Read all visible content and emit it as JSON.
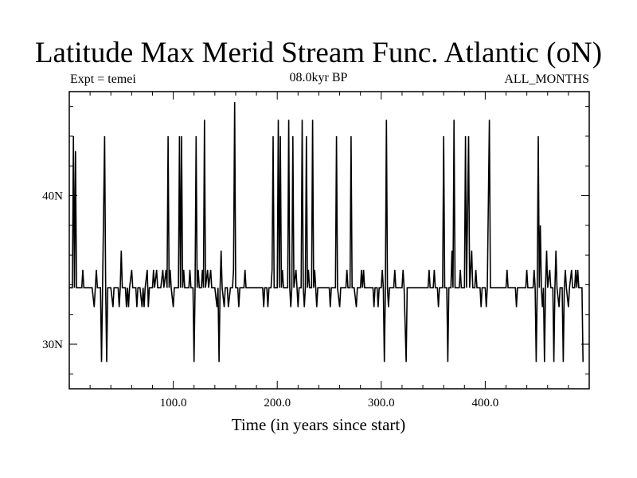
{
  "title": "Latitude Max Merid Stream Func. Atlantic (oN)",
  "subtitle_left": "Expt = temei",
  "subtitle_center": "08.0kyr BP",
  "subtitle_right": "ALL_MONTHS",
  "chart_data": {
    "type": "line",
    "title": "Latitude Max Merid Stream Func. Atlantic (oN)",
    "xlabel": "Time (in years since start)",
    "ylabel": "",
    "xlim": [
      0,
      500
    ],
    "ylim": [
      27,
      47
    ],
    "x_ticks": [
      100,
      200,
      300,
      400
    ],
    "x_tick_labels": [
      "100.0",
      "200.0",
      "300.0",
      "400.0"
    ],
    "y_ticks": [
      30,
      40
    ],
    "y_tick_labels": [
      "30N",
      "40N"
    ],
    "grid": false,
    "series": [
      {
        "color": "#000000",
        "points": [
          [
            0,
            33.8
          ],
          [
            3,
            33.8
          ],
          [
            4,
            44
          ],
          [
            5,
            33.8
          ],
          [
            6,
            43
          ],
          [
            7,
            33.8
          ],
          [
            12,
            33.8
          ],
          [
            13,
            35
          ],
          [
            14,
            33.8
          ],
          [
            22,
            33.8
          ],
          [
            24,
            32.5
          ],
          [
            25,
            33.8
          ],
          [
            26,
            35
          ],
          [
            27,
            33.8
          ],
          [
            30,
            33.8
          ],
          [
            31,
            28.8
          ],
          [
            32,
            33.8
          ],
          [
            34,
            44
          ],
          [
            35,
            33.8
          ],
          [
            36,
            28.8
          ],
          [
            37,
            33.8
          ],
          [
            40,
            33.8
          ],
          [
            42,
            32.5
          ],
          [
            43,
            33.8
          ],
          [
            47,
            33.8
          ],
          [
            48,
            32.5
          ],
          [
            49,
            33.8
          ],
          [
            50,
            36.3
          ],
          [
            51,
            33.8
          ],
          [
            54,
            33.8
          ],
          [
            55,
            32.5
          ],
          [
            56,
            33.8
          ],
          [
            57,
            32.5
          ],
          [
            58,
            33.8
          ],
          [
            60,
            35
          ],
          [
            61,
            33.8
          ],
          [
            64,
            33.8
          ],
          [
            65,
            32.5
          ],
          [
            66,
            33.8
          ],
          [
            68,
            33.8
          ],
          [
            70,
            32.5
          ],
          [
            71,
            33.8
          ],
          [
            72,
            32.5
          ],
          [
            73,
            33.8
          ],
          [
            75,
            35
          ],
          [
            76,
            32.5
          ],
          [
            77,
            33.8
          ],
          [
            80,
            33.8
          ],
          [
            81,
            35
          ],
          [
            82,
            33.8
          ],
          [
            84,
            35
          ],
          [
            85,
            33.8
          ],
          [
            88,
            33.8
          ],
          [
            90,
            35
          ],
          [
            91,
            33.8
          ],
          [
            93,
            35
          ],
          [
            94,
            33.8
          ],
          [
            95,
            44
          ],
          [
            96,
            33.8
          ],
          [
            97,
            35
          ],
          [
            98,
            33.8
          ],
          [
            100,
            32.5
          ],
          [
            101,
            33.8
          ],
          [
            105,
            33.8
          ],
          [
            106,
            44
          ],
          [
            107,
            33.8
          ],
          [
            108,
            44
          ],
          [
            109,
            33.8
          ],
          [
            110,
            35
          ],
          [
            111,
            33.8
          ],
          [
            115,
            33.8
          ],
          [
            116,
            35
          ],
          [
            117,
            33.8
          ],
          [
            119,
            33.8
          ],
          [
            120,
            28.8
          ],
          [
            121,
            33.8
          ],
          [
            122,
            44
          ],
          [
            123,
            33.8
          ],
          [
            124,
            35
          ],
          [
            125,
            33.8
          ],
          [
            127,
            33.8
          ],
          [
            128,
            35
          ],
          [
            129,
            33.8
          ],
          [
            130,
            45.1
          ],
          [
            131,
            33.8
          ],
          [
            133,
            35
          ],
          [
            134,
            33.8
          ],
          [
            136,
            35
          ],
          [
            137,
            33.8
          ],
          [
            140,
            33.8
          ],
          [
            142,
            32.5
          ],
          [
            143,
            33.8
          ],
          [
            144,
            28.8
          ],
          [
            145,
            33.8
          ],
          [
            146,
            36.3
          ],
          [
            147,
            33.8
          ],
          [
            149,
            32.5
          ],
          [
            150,
            33.8
          ],
          [
            152,
            33.8
          ],
          [
            153,
            32.5
          ],
          [
            155,
            33.8
          ],
          [
            157,
            33.8
          ],
          [
            158,
            35
          ],
          [
            159,
            46.3
          ],
          [
            160,
            33.8
          ],
          [
            162,
            33.8
          ],
          [
            163,
            32.5
          ],
          [
            164,
            33.8
          ],
          [
            168,
            33.8
          ],
          [
            169,
            35
          ],
          [
            170,
            33.8
          ],
          [
            186,
            33.8
          ],
          [
            187,
            32.5
          ],
          [
            188,
            33.8
          ],
          [
            190,
            33.8
          ],
          [
            191,
            32.5
          ],
          [
            192,
            33.8
          ],
          [
            194,
            33.8
          ],
          [
            195,
            35
          ],
          [
            196,
            44
          ],
          [
            197,
            33.8
          ],
          [
            200,
            33.8
          ],
          [
            201,
            45.1
          ],
          [
            202,
            33.8
          ],
          [
            203,
            44
          ],
          [
            204,
            33.8
          ],
          [
            205,
            35
          ],
          [
            206,
            33.8
          ],
          [
            210,
            33.8
          ],
          [
            211,
            45.1
          ],
          [
            212,
            33.8
          ],
          [
            213,
            32.5
          ],
          [
            214,
            33.8
          ],
          [
            215,
            44
          ],
          [
            216,
            33.8
          ],
          [
            218,
            35
          ],
          [
            219,
            33.8
          ],
          [
            220,
            32.5
          ],
          [
            221,
            33.8
          ],
          [
            223,
            33.8
          ],
          [
            224,
            45.1
          ],
          [
            225,
            33.8
          ],
          [
            226,
            32.5
          ],
          [
            227,
            33.8
          ],
          [
            228,
            44
          ],
          [
            229,
            33.8
          ],
          [
            230,
            35
          ],
          [
            231,
            33.8
          ],
          [
            233,
            33.8
          ],
          [
            234,
            45.1
          ],
          [
            235,
            33.8
          ],
          [
            236,
            35
          ],
          [
            237,
            33.8
          ],
          [
            238,
            32.5
          ],
          [
            239,
            33.8
          ],
          [
            250,
            33.8
          ],
          [
            251,
            32.5
          ],
          [
            252,
            33.8
          ],
          [
            256,
            33.8
          ],
          [
            257,
            44
          ],
          [
            258,
            33.8
          ],
          [
            260,
            32.5
          ],
          [
            261,
            33.8
          ],
          [
            266,
            33.8
          ],
          [
            267,
            35
          ],
          [
            268,
            33.8
          ],
          [
            270,
            33.8
          ],
          [
            271,
            44
          ],
          [
            272,
            33.8
          ],
          [
            274,
            33.8
          ],
          [
            276,
            32.5
          ],
          [
            277,
            33.8
          ],
          [
            280,
            33.8
          ],
          [
            281,
            35
          ],
          [
            282,
            33.8
          ],
          [
            283,
            35
          ],
          [
            284,
            33.8
          ],
          [
            292,
            33.8
          ],
          [
            293,
            32.5
          ],
          [
            294,
            33.8
          ],
          [
            296,
            33.8
          ],
          [
            297,
            32.5
          ],
          [
            298,
            33.8
          ],
          [
            300,
            33.8
          ],
          [
            301,
            35
          ],
          [
            302,
            33.8
          ],
          [
            303,
            28.8
          ],
          [
            304,
            33.8
          ],
          [
            305,
            45.1
          ],
          [
            306,
            33.8
          ],
          [
            307,
            32.5
          ],
          [
            308,
            33.8
          ],
          [
            312,
            33.8
          ],
          [
            313,
            35
          ],
          [
            314,
            33.8
          ],
          [
            320,
            33.8
          ],
          [
            321,
            35
          ],
          [
            322,
            33.8
          ],
          [
            324,
            28.8
          ],
          [
            325,
            33.8
          ],
          [
            345,
            33.8
          ],
          [
            346,
            35
          ],
          [
            347,
            33.8
          ],
          [
            350,
            33.8
          ],
          [
            351,
            35
          ],
          [
            352,
            33.8
          ],
          [
            354,
            33.8
          ],
          [
            355,
            32.5
          ],
          [
            356,
            33.8
          ],
          [
            359,
            33.8
          ],
          [
            360,
            44
          ],
          [
            361,
            33.8
          ],
          [
            363,
            33.8
          ],
          [
            364,
            28.8
          ],
          [
            365,
            33.8
          ],
          [
            367,
            33.8
          ],
          [
            368,
            36.3
          ],
          [
            369,
            33.8
          ],
          [
            370,
            45.1
          ],
          [
            371,
            33.8
          ],
          [
            375,
            33.8
          ],
          [
            376,
            35
          ],
          [
            377,
            33.8
          ],
          [
            380,
            33.8
          ],
          [
            381,
            44
          ],
          [
            382,
            33.8
          ],
          [
            384,
            44
          ],
          [
            385,
            33.8
          ],
          [
            387,
            36.3
          ],
          [
            388,
            33.8
          ],
          [
            390,
            33.8
          ],
          [
            391,
            35
          ],
          [
            392,
            33.8
          ],
          [
            395,
            33.8
          ],
          [
            396,
            32.5
          ],
          [
            397,
            33.8
          ],
          [
            400,
            33.8
          ],
          [
            401,
            32.5
          ],
          [
            402,
            33.8
          ],
          [
            404,
            45.1
          ],
          [
            405,
            33.8
          ],
          [
            420,
            33.8
          ],
          [
            421,
            35
          ],
          [
            422,
            33.8
          ],
          [
            429,
            33.8
          ],
          [
            430,
            32.5
          ],
          [
            431,
            33.8
          ],
          [
            439,
            33.8
          ],
          [
            440,
            35
          ],
          [
            441,
            33.8
          ],
          [
            446,
            33.8
          ],
          [
            447,
            35
          ],
          [
            448,
            33.8
          ],
          [
            449,
            28.8
          ],
          [
            450,
            33.8
          ],
          [
            451,
            44
          ],
          [
            452,
            33.8
          ],
          [
            453,
            38
          ],
          [
            454,
            33.8
          ],
          [
            455,
            32.5
          ],
          [
            456,
            33.8
          ],
          [
            457,
            28.8
          ],
          [
            458,
            33.8
          ],
          [
            459,
            36.3
          ],
          [
            460,
            33.8
          ],
          [
            462,
            35
          ],
          [
            463,
            33.8
          ],
          [
            465,
            33.8
          ],
          [
            466,
            28.8
          ],
          [
            467,
            33.8
          ],
          [
            468,
            36.3
          ],
          [
            469,
            33.8
          ],
          [
            471,
            32.5
          ],
          [
            472,
            33.8
          ],
          [
            474,
            33.8
          ],
          [
            475,
            28.8
          ],
          [
            476,
            33.8
          ],
          [
            477,
            35
          ],
          [
            478,
            33.8
          ],
          [
            480,
            32.5
          ],
          [
            481,
            33.8
          ],
          [
            483,
            35
          ],
          [
            484,
            33.8
          ],
          [
            486,
            33.8
          ],
          [
            487,
            35
          ],
          [
            488,
            33.8
          ],
          [
            489,
            35
          ],
          [
            490,
            33.8
          ],
          [
            493,
            33.8
          ],
          [
            494,
            28.8
          ]
        ]
      }
    ]
  }
}
